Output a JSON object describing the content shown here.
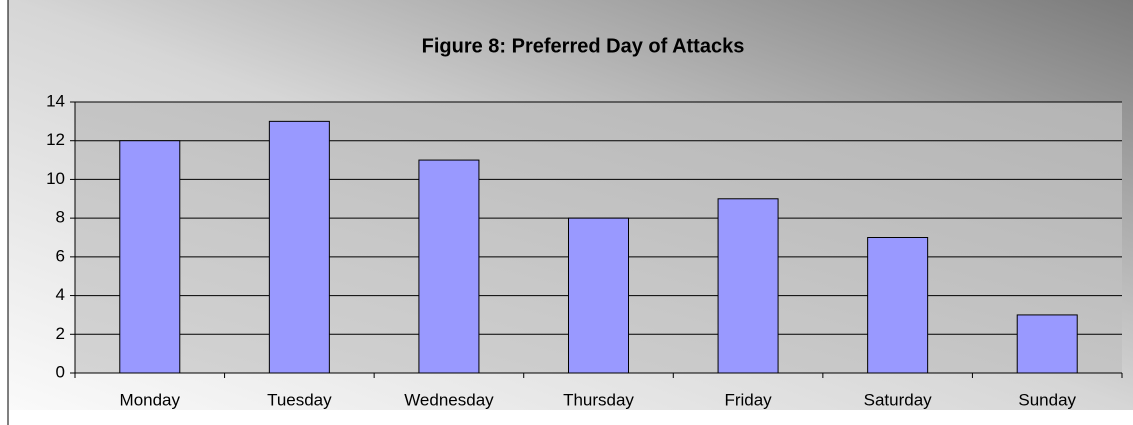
{
  "chart_data": {
    "type": "bar",
    "title": "Figure 8: Preferred Day of Attacks",
    "categories": [
      "Monday",
      "Tuesday",
      "Wednesday",
      "Thursday",
      "Friday",
      "Saturday",
      "Sunday"
    ],
    "values": [
      12,
      13,
      11,
      8,
      9,
      7,
      3
    ],
    "color": "#9999ff",
    "ylim": [
      0,
      14
    ],
    "yticks": [
      0,
      2,
      4,
      6,
      8,
      10,
      12,
      14
    ],
    "grid": true
  }
}
